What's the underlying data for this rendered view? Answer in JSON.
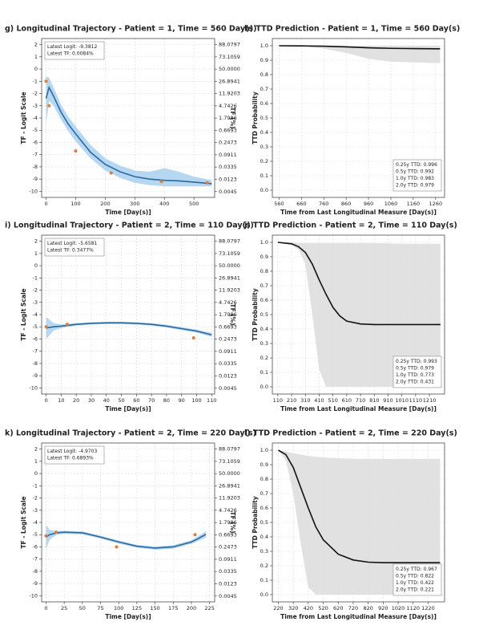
{
  "chart_data": [
    {
      "type": "line",
      "title": "g) Longitudinal Trajectory - Patient = 1, Time = 560 Day(s)",
      "xlabel": "Time [Day(s)]",
      "ylabel": "TF - Logit Scale",
      "y2label": "TF (%)",
      "xlim": [
        -15,
        570
      ],
      "xticks": [
        0,
        100,
        200,
        300,
        400,
        500
      ],
      "ylim": [
        -10.5,
        2.5
      ],
      "yticks": [
        2,
        1,
        0,
        -1,
        -2,
        -3,
        -4,
        -5,
        -6,
        -7,
        -8,
        -9,
        -10
      ],
      "y2scale": "logit",
      "y2lim": [
        0.0028,
        92.4142
      ],
      "y2ticks": [
        88.0797,
        73.1059,
        {
          "value": 50,
          "label": "50.0000"
        },
        26.8941,
        11.9203,
        4.7426,
        1.7986,
        0.6693,
        0.2473,
        0.0911,
        0.0335,
        0.0123,
        0.0045
      ],
      "grid": true,
      "annotation_loc": "upper left",
      "annotations": [
        "Latest Logit: -9.3812",
        "Latest TF: 0.0084%"
      ],
      "series": [
        {
          "type": "band",
          "color": "#a9d0f0",
          "x": [
            0,
            10,
            25,
            50,
            75,
            100,
            150,
            200,
            250,
            300,
            350,
            400,
            450,
            500,
            560
          ],
          "upper": [
            -0.6,
            -0.7,
            -1.5,
            -2.9,
            -3.9,
            -4.7,
            -6.2,
            -7.3,
            -7.9,
            -8.3,
            -8.4,
            -8.1,
            -8.4,
            -8.8,
            -9.1
          ],
          "lower": [
            -4.5,
            -2.6,
            -3.0,
            -4.1,
            -5.1,
            -5.9,
            -7.3,
            -8.3,
            -8.9,
            -9.3,
            -9.5,
            -9.6,
            -9.6,
            -9.6,
            -9.6
          ]
        },
        {
          "type": "line",
          "color": "#2b6a9e",
          "x": [
            0,
            10,
            25,
            50,
            75,
            100,
            150,
            200,
            250,
            300,
            350,
            400,
            450,
            500,
            560
          ],
          "values": [
            -2.4,
            -1.5,
            -2.2,
            -3.5,
            -4.5,
            -5.3,
            -6.8,
            -7.8,
            -8.4,
            -8.8,
            -9.0,
            -9.1,
            -9.15,
            -9.25,
            -9.38
          ]
        },
        {
          "type": "scatter",
          "color": "#e07b39",
          "x": [
            0,
            10,
            100,
            220,
            390,
            545
          ],
          "values": [
            -1.0,
            -3.0,
            -6.7,
            -8.5,
            -9.2,
            -9.3
          ]
        }
      ]
    },
    {
      "type": "line",
      "title": "h) TTD Prediction - Patient = 1, Time = 560 Day(s)",
      "xlabel": "Time from Last Longitudinal Measure [Day(s)]",
      "ylabel": "TTD Probability",
      "xlim": [
        530,
        1300
      ],
      "xticks": [
        560,
        660,
        760,
        860,
        960,
        1060,
        1160,
        1260
      ],
      "ylim": [
        -0.05,
        1.05
      ],
      "yticks": [
        {
          "value": 0,
          "label": "0.0"
        },
        0.1,
        0.2,
        0.3,
        0.4,
        0.5,
        0.6,
        0.7,
        0.8,
        0.9,
        {
          "value": 1,
          "label": "1.0"
        }
      ],
      "grid": true,
      "annotation_loc": "lower right",
      "annotations": [
        "0.25y TTD: 0.996",
        "0.5y TTD: 0.992",
        "1.0y TTD: 0.983",
        "2.0y TTD: 0.979"
      ],
      "series": [
        {
          "type": "band",
          "color": "#dcdcdc",
          "x": [
            560,
            660,
            760,
            860,
            960,
            1060,
            1160,
            1260,
            1280
          ],
          "upper": [
            1.0,
            1.0,
            1.0,
            1.0,
            1.0,
            1.0,
            1.0,
            1.0,
            1.0
          ],
          "lower": [
            1.0,
            0.995,
            0.98,
            0.95,
            0.91,
            0.89,
            0.885,
            0.88,
            0.88
          ]
        },
        {
          "type": "line",
          "color": "#111111",
          "x": [
            560,
            660,
            760,
            860,
            960,
            1060,
            1160,
            1260,
            1280
          ],
          "values": [
            1.0,
            0.999,
            0.997,
            0.992,
            0.986,
            0.982,
            0.98,
            0.979,
            0.979
          ]
        }
      ]
    },
    {
      "type": "line",
      "title": "i) Longitudinal Trajectory - Patient = 2, Time = 110 Day(s)",
      "xlabel": "Time [Day(s)]",
      "ylabel": "TF - Logit Scale",
      "y2label": "TF (%)",
      "xlim": [
        -3,
        112
      ],
      "xticks": [
        0,
        10,
        20,
        30,
        40,
        50,
        60,
        70,
        80,
        90,
        100,
        110
      ],
      "ylim": [
        -10.5,
        2.5
      ],
      "yticks": [
        2,
        1,
        0,
        -1,
        -2,
        -3,
        -4,
        -5,
        -6,
        -7,
        -8,
        -9,
        -10
      ],
      "y2scale": "logit",
      "y2lim": [
        0.0028,
        92.4142
      ],
      "y2ticks": [
        88.0797,
        73.1059,
        {
          "value": 50,
          "label": "50.0000"
        },
        26.8941,
        11.9203,
        4.7426,
        1.7986,
        0.6693,
        0.2473,
        0.0911,
        0.0335,
        0.0123,
        0.0045
      ],
      "grid": true,
      "annotation_loc": "upper left",
      "annotations": [
        "Latest Logit: -5.6581",
        "Latest TF: 0.3477%"
      ],
      "series": [
        {
          "type": "band",
          "color": "#a9d0f0",
          "x": [
            0,
            5,
            10,
            20,
            30,
            40,
            50,
            60,
            70,
            80,
            90,
            100,
            110
          ],
          "upper": [
            -4.2,
            -4.7,
            -4.8,
            -4.7,
            -4.62,
            -4.58,
            -4.58,
            -4.62,
            -4.7,
            -4.84,
            -5.03,
            -5.22,
            -5.5
          ],
          "lower": [
            -6.0,
            -5.3,
            -5.1,
            -4.9,
            -4.82,
            -4.78,
            -4.78,
            -4.82,
            -4.9,
            -5.06,
            -5.27,
            -5.48,
            -5.82
          ]
        },
        {
          "type": "line",
          "color": "#2b6a9e",
          "x": [
            0,
            5,
            10,
            20,
            30,
            40,
            50,
            60,
            70,
            80,
            90,
            100,
            110
          ],
          "values": [
            -5.1,
            -5.0,
            -4.95,
            -4.8,
            -4.72,
            -4.68,
            -4.68,
            -4.72,
            -4.8,
            -4.95,
            -5.15,
            -5.35,
            -5.66
          ]
        },
        {
          "type": "scatter",
          "color": "#e07b39",
          "x": [
            0,
            14,
            98
          ],
          "values": [
            -5.0,
            -4.8,
            -5.9
          ]
        }
      ]
    },
    {
      "type": "line",
      "title": "j) TTD Prediction - Patient = 2, Time = 110 Day(s)",
      "xlabel": "Time from Last Longitudinal Measure [Day(s)]",
      "ylabel": "TTD Probability",
      "xlim": [
        70,
        1320
      ],
      "xticks": [
        110,
        210,
        310,
        410,
        510,
        610,
        710,
        810,
        910,
        1010,
        1110,
        1210
      ],
      "ylim": [
        -0.05,
        1.05
      ],
      "yticks": [
        {
          "value": 0,
          "label": "0.0"
        },
        0.1,
        0.2,
        0.3,
        0.4,
        0.5,
        0.6,
        0.7,
        0.8,
        0.9,
        {
          "value": 1,
          "label": "1.0"
        }
      ],
      "grid": true,
      "annotation_loc": "lower right",
      "annotations": [
        "0.25y TTD: 0.993",
        "0.5y TTD: 0.979",
        "1.0y TTD: 0.773",
        "2.0y TTD: 0.431"
      ],
      "series": [
        {
          "type": "band",
          "color": "#dcdcdc",
          "x": [
            110,
            210,
            260,
            310,
            360,
            410,
            460,
            510,
            560,
            610,
            710,
            810,
            1010,
            1290
          ],
          "upper": [
            1.0,
            1.0,
            0.995,
            0.995,
            0.995,
            0.995,
            0.995,
            0.995,
            0.995,
            0.995,
            0.995,
            0.995,
            0.99,
            0.99
          ],
          "lower": [
            1.0,
            0.98,
            0.95,
            0.85,
            0.5,
            0.12,
            0,
            0,
            0,
            0,
            0,
            0,
            0,
            0
          ]
        },
        {
          "type": "line",
          "color": "#111111",
          "x": [
            110,
            210,
            260,
            310,
            360,
            410,
            460,
            510,
            560,
            610,
            710,
            810,
            1010,
            1290
          ],
          "values": [
            1.0,
            0.99,
            0.97,
            0.93,
            0.85,
            0.74,
            0.64,
            0.55,
            0.49,
            0.455,
            0.435,
            0.431,
            0.431,
            0.431
          ]
        }
      ]
    },
    {
      "type": "line",
      "title": "k) Longitudinal Trajectory - Patient = 2, Time = 220 Day(s)",
      "xlabel": "Time [Day(s)]",
      "ylabel": "TF - Logit Scale",
      "y2label": "TF (%)",
      "xlim": [
        -6,
        232
      ],
      "xticks": [
        0,
        25,
        50,
        75,
        100,
        125,
        150,
        175,
        200,
        225
      ],
      "ylim": [
        -10.5,
        2.5
      ],
      "yticks": [
        2,
        1,
        0,
        -1,
        -2,
        -3,
        -4,
        -5,
        -6,
        -7,
        -8,
        -9,
        -10
      ],
      "y2scale": "logit",
      "y2lim": [
        0.0028,
        92.4142
      ],
      "y2ticks": [
        88.0797,
        73.1059,
        {
          "value": 50,
          "label": "50.0000"
        },
        26.8941,
        11.9203,
        4.7426,
        1.7986,
        0.6693,
        0.2473,
        0.0911,
        0.0335,
        0.0123,
        0.0045
      ],
      "grid": true,
      "annotation_loc": "upper left",
      "annotations": [
        "Latest Logit: -4.9703",
        "Latest TF: 0.6893%"
      ],
      "series": [
        {
          "type": "band",
          "color": "#a9d0f0",
          "x": [
            0,
            5,
            15,
            25,
            50,
            75,
            100,
            125,
            150,
            175,
            200,
            210,
            220
          ],
          "upper": [
            -4.2,
            -4.6,
            -4.7,
            -4.68,
            -4.73,
            -5.08,
            -5.48,
            -5.83,
            -5.97,
            -5.86,
            -5.45,
            -5.1,
            -4.7
          ],
          "lower": [
            -6.2,
            -5.4,
            -5.0,
            -4.92,
            -4.97,
            -5.32,
            -5.72,
            -6.07,
            -6.23,
            -6.14,
            -5.75,
            -5.5,
            -5.24
          ]
        },
        {
          "type": "line",
          "color": "#2b6a9e",
          "x": [
            0,
            5,
            15,
            25,
            50,
            75,
            100,
            125,
            150,
            175,
            200,
            210,
            220
          ],
          "values": [
            -5.2,
            -5.0,
            -4.85,
            -4.8,
            -4.85,
            -5.2,
            -5.6,
            -5.95,
            -6.1,
            -6.0,
            -5.6,
            -5.3,
            -4.97
          ]
        },
        {
          "type": "scatter",
          "color": "#e07b39",
          "x": [
            0,
            14,
            97,
            205
          ],
          "values": [
            -5.1,
            -4.8,
            -6.0,
            -5.0
          ]
        }
      ]
    },
    {
      "type": "line",
      "title": "l) TTD Prediction - Patient = 2, Time = 220 Day(s)",
      "xlabel": "Time from Last Longitudinal Measure [Day(s)]",
      "ylabel": "TTD Probability",
      "xlim": [
        180,
        1330
      ],
      "xticks": [
        220,
        320,
        420,
        520,
        620,
        720,
        820,
        920,
        1020,
        1120,
        1220
      ],
      "ylim": [
        -0.05,
        1.05
      ],
      "yticks": [
        {
          "value": 0,
          "label": "0.0"
        },
        0.1,
        0.2,
        0.3,
        0.4,
        0.5,
        0.6,
        0.7,
        0.8,
        0.9,
        {
          "value": 1,
          "label": "1.0"
        }
      ],
      "grid": true,
      "annotation_loc": "lower right",
      "annotations": [
        "0.25y TTD: 0.967",
        "0.5y TTD: 0.822",
        "1.0y TTD: 0.422",
        "2.0y TTD: 0.221"
      ],
      "series": [
        {
          "type": "band",
          "color": "#dcdcdc",
          "x": [
            220,
            270,
            320,
            370,
            420,
            470,
            520,
            620,
            720,
            820,
            920,
            1020,
            1300
          ],
          "upper": [
            1.0,
            0.99,
            0.98,
            0.97,
            0.96,
            0.955,
            0.95,
            0.945,
            0.94,
            0.94,
            0.94,
            0.94,
            0.94
          ],
          "lower": [
            1.0,
            0.93,
            0.7,
            0.35,
            0.05,
            0,
            0,
            0,
            0,
            0,
            0,
            0,
            0
          ]
        },
        {
          "type": "line",
          "color": "#111111",
          "x": [
            220,
            270,
            320,
            370,
            420,
            470,
            520,
            620,
            720,
            820,
            920,
            1020,
            1300
          ],
          "values": [
            1.0,
            0.97,
            0.88,
            0.74,
            0.6,
            0.47,
            0.38,
            0.28,
            0.24,
            0.225,
            0.221,
            0.221,
            0.221
          ]
        }
      ]
    }
  ]
}
